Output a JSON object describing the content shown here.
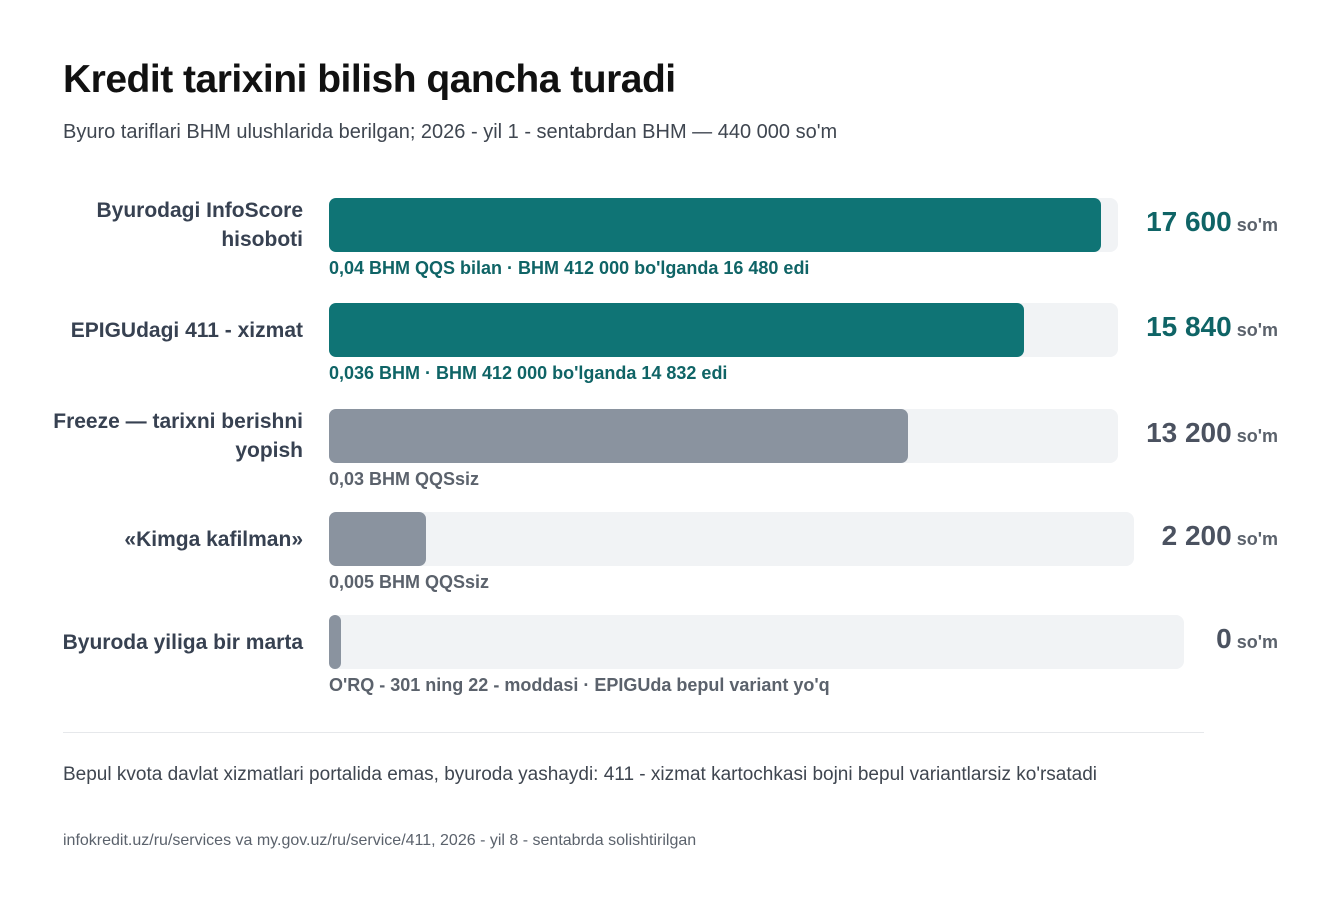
{
  "header": {
    "title": "Kredit tarixini bilish qancha turadi",
    "subtitle": "Byuro tariflari BHM ulushlarida berilgan; 2026 - yil 1 - sentabrdan BHM — 440 000 so'm"
  },
  "chart_data": {
    "type": "bar",
    "orientation": "horizontal",
    "categories": [
      "Byurodagi InfoScore hisoboti",
      "EPIGUdagi 411 - xizmat",
      "Freeze — tarixni berishni yopish",
      "«Kimga kafilman»",
      "Byuroda yiliga bir marta"
    ],
    "values": [
      17600,
      15840,
      13200,
      2200,
      0
    ],
    "value_labels": [
      "17 600",
      "15 840",
      "13 200",
      "2 200",
      "0"
    ],
    "unit": "so'm",
    "notes": [
      "0,04 BHM QQS bilan · BHM 412 000 bo'lganda 16 480 edi",
      "0,036 BHM · BHM 412 000 bo'lganda 14 832 edi",
      "0,03 BHM QQSsiz",
      "0,005 BHM QQSsiz",
      "O'RQ - 301 ning 22 - moddasi · EPIGUda bepul variant yo'q"
    ],
    "highlight": [
      true,
      true,
      false,
      false,
      false
    ],
    "xlim": [
      0,
      17600
    ],
    "colors": {
      "highlight": "#0f7475",
      "other": "#8a939f",
      "track": "#f1f3f5"
    },
    "grid": false,
    "legend": "none"
  },
  "footer": {
    "note": "Bepul kvota davlat xizmatlari portalida emas, byuroda yashaydi: 411 - xizmat kartochkasi bojni bepul variantlarsiz ko'rsatadi",
    "source": "infokredit.uz/ru/services va my.gov.uz/ru/service/411, 2026 - yil 8 - sentabrda solishtirilgan"
  }
}
